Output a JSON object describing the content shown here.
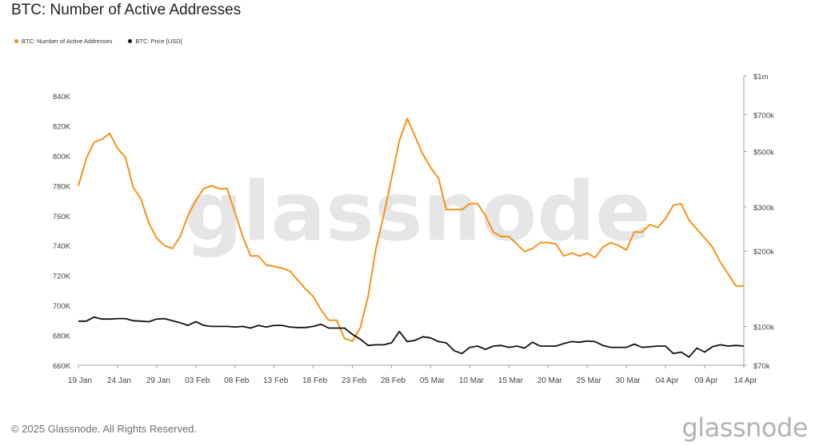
{
  "page": {
    "title": "BTC: Number of Active Addresses",
    "footer": "© 2025 Glassnode. All Rights Reserved.",
    "watermark": "glassnode",
    "footer_logo": "glassnode"
  },
  "legend": [
    {
      "label": "BTC: Number of Active Addresses",
      "color": "#f7931a"
    },
    {
      "label": "BTC: Price [USD]",
      "color": "#111111"
    }
  ],
  "chart_data": {
    "type": "line",
    "x_ticks": [
      "19 Jan",
      "24 Jan",
      "29 Jan",
      "03 Feb",
      "08 Feb",
      "13 Feb",
      "18 Feb",
      "23 Feb",
      "28 Feb",
      "05 Mar",
      "10 Mar",
      "15 Mar",
      "20 Mar",
      "25 Mar",
      "30 Mar",
      "04 Apr",
      "09 Apr",
      "14 Apr"
    ],
    "y_left": {
      "ticks": [
        "660K",
        "680K",
        "700K",
        "720K",
        "740K",
        "760K",
        "780K",
        "800K",
        "820K",
        "840K"
      ],
      "range": [
        660000,
        848000
      ]
    },
    "y_right": {
      "scale": "log",
      "ticks": [
        {
          "label": "$70k",
          "value": 70000
        },
        {
          "label": "$100k",
          "value": 100000
        },
        {
          "label": "$200k",
          "value": 200000
        },
        {
          "label": "$300k",
          "value": 300000
        },
        {
          "label": "$500k",
          "value": 500000
        },
        {
          "label": "$700k",
          "value": 700000
        },
        {
          "label": "$1m",
          "value": 1000000
        }
      ],
      "range": [
        70000,
        1000000
      ]
    },
    "grid": false,
    "series": [
      {
        "name": "BTC: Number of Active Addresses",
        "axis": "left",
        "color": "#f7931a",
        "values": [
          780000,
          798000,
          809000,
          811000,
          815000,
          805000,
          799000,
          779000,
          771000,
          755000,
          745000,
          740000,
          738000,
          746000,
          760000,
          770000,
          778000,
          780000,
          778000,
          778000,
          762000,
          746000,
          733000,
          733000,
          727000,
          726000,
          725000,
          723000,
          717000,
          711000,
          706000,
          697000,
          690000,
          690000,
          678000,
          676000,
          685000,
          706000,
          738000,
          760000,
          785000,
          810000,
          825000,
          813000,
          801000,
          792000,
          785000,
          764000,
          764000,
          764000,
          768000,
          768000,
          760000,
          749000,
          746000,
          746000,
          741000,
          736000,
          738000,
          742000,
          742000,
          741000,
          733000,
          735000,
          733000,
          735000,
          732000,
          739000,
          742000,
          740000,
          737000,
          749000,
          749000,
          754000,
          752000,
          758000,
          767000,
          768000,
          757000,
          751000,
          745000,
          739000,
          729000,
          721000,
          713000,
          713000
        ]
      },
      {
        "name": "BTC: Price [USD]",
        "axis": "right",
        "color": "#111111",
        "values": [
          105000,
          105000,
          109000,
          107000,
          107000,
          107500,
          107500,
          105500,
          105000,
          104500,
          107000,
          107500,
          105500,
          103500,
          101000,
          104500,
          101000,
          100000,
          100000,
          100000,
          99500,
          100000,
          98500,
          101000,
          99500,
          101000,
          101000,
          99500,
          99000,
          99000,
          100000,
          102000,
          98500,
          98500,
          98500,
          93000,
          89000,
          84000,
          84500,
          84500,
          86000,
          95500,
          87000,
          88000,
          91000,
          90000,
          87000,
          86000,
          80000,
          78000,
          82500,
          83500,
          81000,
          83500,
          84000,
          82500,
          83500,
          82000,
          86500,
          83500,
          83500,
          83500,
          85500,
          87000,
          86500,
          87500,
          87000,
          84000,
          82500,
          82500,
          82500,
          85000,
          82500,
          83000,
          83500,
          83500,
          78000,
          79000,
          75500,
          82000,
          79000,
          83000,
          84500,
          83500,
          84000,
          83500
        ]
      }
    ]
  }
}
